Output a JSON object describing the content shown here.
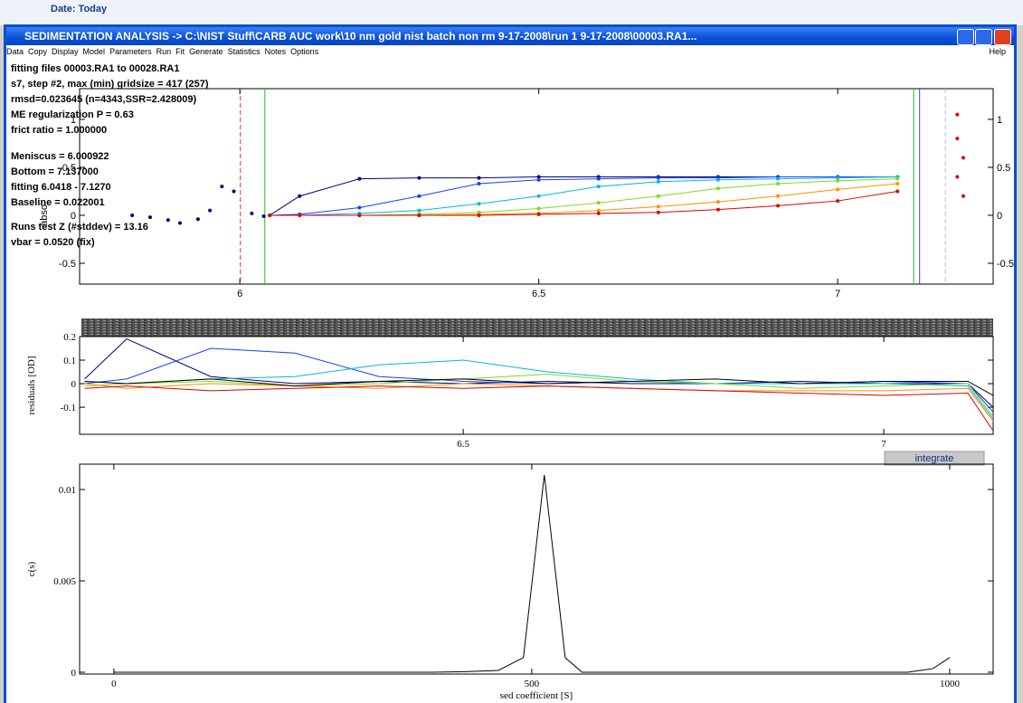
{
  "background": {
    "label": "Date: Today"
  },
  "window": {
    "title": "SEDIMENTATION ANALYSIS -> C:\\NIST Stuff\\CARB AUC work\\10 nm gold nist batch non rm 9-17-2008\\run 1 9-17-2008\\00003.RA1...",
    "menu": [
      "Data",
      "Copy",
      "Display",
      "Model",
      "Parameters",
      "Run",
      "Fit",
      "Generate",
      "Statistics",
      "Notes",
      "Options"
    ],
    "help": "Help",
    "button": "integrate"
  },
  "chart_data": [
    {
      "type": "line",
      "y_label": "abso",
      "annotations": [
        "fitting files 00003.RA1 to 00028.RA1",
        "s7, step #2, max (min) gridsize = 417 (257)",
        "rmsd=0.023645 (n=4343,SSR=2.428009)",
        "ME regularization P = 0.63",
        "frict ratio = 1.000000",
        "Meniscus = 6.000922",
        "Bottom = 7.137000",
        "fitting 6.0418 - 7.1270",
        "Baseline = 0.022001",
        "Runs test Z (#stddev) = 13.16",
        "vbar = 0.0520 (fix)"
      ],
      "xlim": [
        5.732,
        7.26
      ],
      "ylim": [
        -0.717,
        1.32
      ],
      "xticks": [
        6,
        6.5,
        7
      ],
      "yticks": [
        -0.5,
        0,
        0.5,
        1
      ],
      "right_tick_labels": true,
      "markers": [
        {
          "x": 6.000922,
          "color": "#e03030",
          "dashed": true
        },
        {
          "x": 6.0418,
          "color": "#20c020",
          "dashed": false
        },
        {
          "x": 7.127,
          "color": "#20c020",
          "dashed": false
        },
        {
          "x": 7.137,
          "color": "#4040c0",
          "dashed": false
        },
        {
          "x": 7.18,
          "color": "#c0c0c0",
          "dashed": true
        }
      ],
      "x": [
        6.05,
        6.1,
        6.2,
        6.3,
        6.4,
        6.5,
        6.6,
        6.7,
        6.8,
        6.9,
        7.0,
        7.1
      ],
      "series": [
        {
          "color": "#000080",
          "values": [
            0,
            0.2,
            0.38,
            0.39,
            0.39,
            0.4,
            0.4,
            0.4,
            0.4,
            0.4,
            0.4,
            0.4
          ]
        },
        {
          "color": "#1040ff",
          "values": [
            0,
            0.01,
            0.08,
            0.2,
            0.33,
            0.37,
            0.38,
            0.39,
            0.39,
            0.4,
            0.4,
            0.4
          ]
        },
        {
          "color": "#00b8e0",
          "values": [
            0,
            0,
            0.02,
            0.05,
            0.12,
            0.2,
            0.3,
            0.35,
            0.37,
            0.38,
            0.39,
            0.4
          ]
        },
        {
          "color": "#80d820",
          "values": [
            0,
            0,
            0,
            0.01,
            0.03,
            0.07,
            0.13,
            0.2,
            0.28,
            0.33,
            0.36,
            0.38
          ]
        },
        {
          "color": "#ff9000",
          "values": [
            0,
            0,
            0,
            0,
            0.01,
            0.02,
            0.05,
            0.09,
            0.14,
            0.2,
            0.27,
            0.33
          ]
        },
        {
          "color": "#e00000",
          "values": [
            0,
            0,
            0,
            0,
            0,
            0.01,
            0.02,
            0.03,
            0.06,
            0.1,
            0.15,
            0.25
          ]
        },
        {
          "color": "#000080",
          "points_only": true,
          "x": [
            5.82,
            5.85,
            5.88,
            5.9,
            5.93,
            5.95,
            5.97,
            5.99,
            6.02,
            6.04
          ],
          "values": [
            0,
            -0.02,
            -0.05,
            -0.08,
            -0.04,
            0.05,
            0.3,
            0.25,
            0.02,
            -0.01
          ]
        },
        {
          "color": "#e00000",
          "points_only": true,
          "x": [
            7.2,
            7.2,
            7.21,
            7.2,
            7.21
          ],
          "values": [
            1.05,
            0.8,
            0.6,
            0.4,
            0.2
          ]
        }
      ]
    },
    {
      "type": "line",
      "y_label": "residuals [OD]",
      "xlim": [
        6.044,
        7.13
      ],
      "ylim": [
        -0.215,
        0.2
      ],
      "xticks": [
        6.5,
        7
      ],
      "yticks": [
        -0.1,
        0,
        0.1,
        0.2
      ],
      "x": [
        6.05,
        6.1,
        6.2,
        6.3,
        6.4,
        6.5,
        6.6,
        6.7,
        6.8,
        6.9,
        7.0,
        7.1,
        7.13
      ],
      "series": [
        {
          "color": "#000080",
          "values": [
            0.02,
            0.19,
            0.03,
            0,
            0.01,
            0,
            0.01,
            0,
            0,
            0.01,
            0,
            0,
            -0.1
          ]
        },
        {
          "color": "#1040ff",
          "values": [
            0,
            0.02,
            0.15,
            0.13,
            0.03,
            0.01,
            0,
            0.01,
            0,
            0,
            0.01,
            0,
            -0.12
          ]
        },
        {
          "color": "#00b8e0",
          "values": [
            0.01,
            0,
            0.02,
            0.03,
            0.08,
            0.1,
            0.05,
            0.02,
            0,
            0,
            0,
            -0.01,
            -0.15
          ]
        },
        {
          "color": "#80d820",
          "values": [
            -0.01,
            0,
            0.01,
            -0.01,
            0,
            0.02,
            0.04,
            0.01,
            0,
            -0.02,
            -0.01,
            0,
            -0.14
          ]
        },
        {
          "color": "#ff9000",
          "values": [
            0,
            -0.02,
            0,
            -0.01,
            -0.02,
            0,
            -0.01,
            -0.02,
            -0.03,
            -0.03,
            -0.03,
            -0.02,
            -0.16
          ]
        },
        {
          "color": "#e00000",
          "values": [
            -0.02,
            -0.01,
            -0.03,
            -0.02,
            -0.01,
            -0.02,
            -0.01,
            -0.02,
            -0.03,
            -0.04,
            -0.05,
            -0.04,
            -0.2
          ]
        },
        {
          "color": "#000000",
          "values": [
            0.01,
            0,
            0.02,
            -0.01,
            0.01,
            0.02,
            0,
            0.01,
            0.02,
            0,
            0.01,
            0.01,
            -0.05
          ]
        }
      ]
    },
    {
      "type": "line",
      "y_label": "c(s)",
      "x_label": "sed coefficient [S]",
      "xlim": [
        -41,
        1052
      ],
      "ylim": [
        -0.0001,
        0.01139
      ],
      "xticks": [
        0,
        500,
        1000
      ],
      "yticks": [
        0,
        0.005,
        0.01
      ],
      "x": [
        0,
        100,
        200,
        300,
        380,
        420,
        460,
        490,
        515,
        540,
        560,
        600,
        700,
        800,
        900,
        950,
        980,
        1000
      ],
      "series": [
        {
          "color": "#000000",
          "values": [
            0,
            0,
            0,
            0,
            0,
            3e-05,
            0.0001,
            0.0008,
            0.0108,
            0.0008,
            0,
            0,
            0,
            0,
            0,
            0,
            0.0002,
            0.0008
          ]
        }
      ]
    }
  ]
}
